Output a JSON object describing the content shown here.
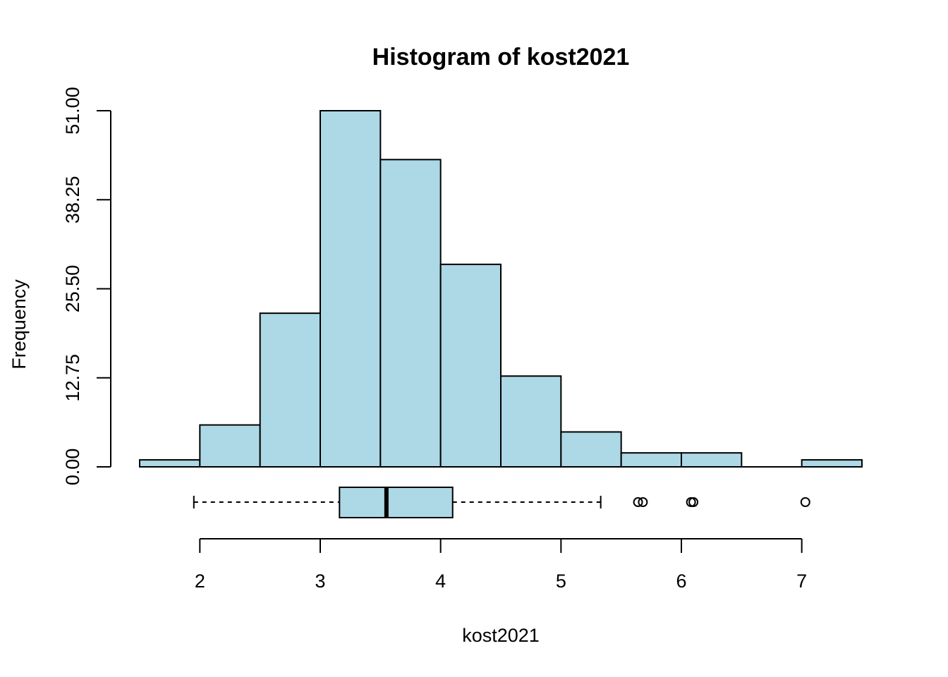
{
  "chart_data": {
    "type": "histogram",
    "title": "Histogram of kost2021",
    "xlabel": "kost2021",
    "ylabel": "Frequency",
    "fill_color": "#ADD8E6",
    "xlim": [
      1.5,
      7.5
    ],
    "ylim": [
      0,
      51
    ],
    "bins": [
      {
        "start": 1.5,
        "end": 2.0,
        "count": 1
      },
      {
        "start": 2.0,
        "end": 2.5,
        "count": 6
      },
      {
        "start": 2.5,
        "end": 3.0,
        "count": 22
      },
      {
        "start": 3.0,
        "end": 3.5,
        "count": 51
      },
      {
        "start": 3.5,
        "end": 4.0,
        "count": 44
      },
      {
        "start": 4.0,
        "end": 4.5,
        "count": 29
      },
      {
        "start": 4.5,
        "end": 5.0,
        "count": 13
      },
      {
        "start": 5.0,
        "end": 5.5,
        "count": 5
      },
      {
        "start": 5.5,
        "end": 6.0,
        "count": 2
      },
      {
        "start": 6.0,
        "end": 6.5,
        "count": 2
      },
      {
        "start": 6.5,
        "end": 7.0,
        "count": 0
      },
      {
        "start": 7.0,
        "end": 7.5,
        "count": 1
      }
    ],
    "y_ticks": [
      0,
      12.75,
      25.5,
      38.25,
      51
    ],
    "y_tick_labels": [
      "0.00",
      "12.75",
      "25.50",
      "38.25",
      "51.00"
    ],
    "x_ticks": [
      2,
      3,
      4,
      5,
      6,
      7
    ],
    "x_tick_labels": [
      "2",
      "3",
      "4",
      "5",
      "6",
      "7"
    ],
    "boxplot": {
      "whisker_low": 1.95,
      "q1": 3.16,
      "median": 3.55,
      "q3": 4.1,
      "whisker_high": 5.33,
      "outliers": [
        5.64,
        5.68,
        6.08,
        6.1,
        7.03
      ]
    }
  }
}
